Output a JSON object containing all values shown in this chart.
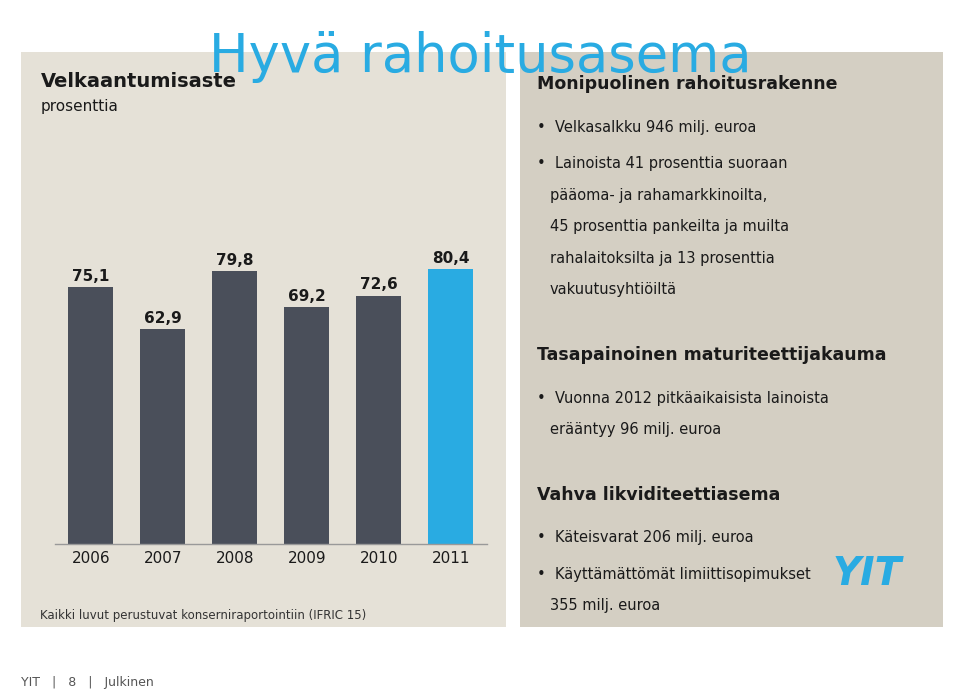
{
  "title": "Hyvä rahoitusasema",
  "title_color": "#29ABE2",
  "chart_title": "Velkaantumisaste",
  "chart_subtitle": "prosenttia",
  "years": [
    "2006",
    "2007",
    "2008",
    "2009",
    "2010",
    "2011"
  ],
  "values": [
    75.1,
    62.9,
    79.8,
    69.2,
    72.6,
    80.4
  ],
  "bar_colors": [
    "#4a4f5a",
    "#4a4f5a",
    "#4a4f5a",
    "#4a4f5a",
    "#4a4f5a",
    "#29ABE2"
  ],
  "chart_bg": "#e5e1d7",
  "right_panel_bg": "#d4cfc3",
  "slide_bg": "#ffffff",
  "footer_text": "Kaikki luvut perustuvat konserniraportointiin (IFRIC 15)",
  "footer_label": "YIT   |   8   |   Julkinen",
  "yit_color": "#29ABE2",
  "text_color": "#1a1a1a",
  "right_content": [
    {
      "type": "heading",
      "text": "Monipuolinen rahoitusrakenne"
    },
    {
      "type": "bullet",
      "text": "Velkasalkku 946 milj. euroa"
    },
    {
      "type": "bullet_ml",
      "lines": [
        "Lainoista 41 prosenttia suoraan",
        "pääoma- ja rahamarkkinoilta,",
        "45 prosenttia pankeilta ja muilta",
        "rahalaitoksilta ja 13 prosenttia",
        "vakuutusyhtiöiltä"
      ]
    },
    {
      "type": "gap"
    },
    {
      "type": "heading",
      "text": "Tasapainoinen maturiteettijakauma"
    },
    {
      "type": "bullet_ml",
      "lines": [
        "Vuonna 2012 pitkäaikaisista lainoista",
        "erääntyy 96 milj. euroa"
      ]
    },
    {
      "type": "gap"
    },
    {
      "type": "heading",
      "text": "Vahva likviditeettiasema"
    },
    {
      "type": "bullet",
      "text": "Käteisvarat 206 milj. euroa"
    },
    {
      "type": "bullet_ml",
      "lines": [
        "Käyttämättömät limiittisopimukset",
        "355 milj. euroa"
      ]
    }
  ]
}
